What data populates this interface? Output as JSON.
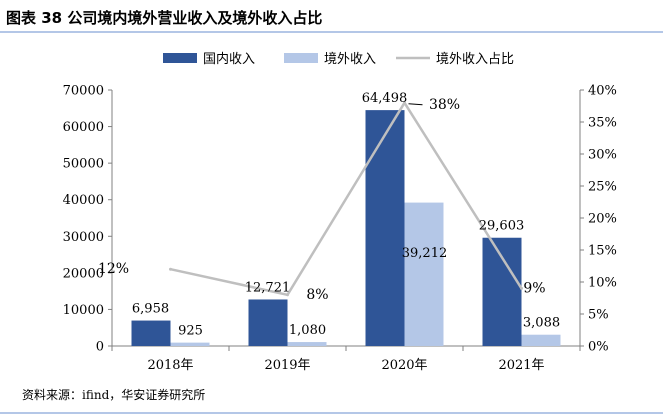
{
  "figure": {
    "title": "图表 38 公司境内境外营业收入及境外收入占比",
    "source": "资料来源：ifind，华安证券研究所"
  },
  "colors": {
    "domestic": "#2f5597",
    "overseas": "#b4c7e7",
    "ratio_line": "#bfbfbf",
    "rule": "#b4c7e7"
  },
  "chart_data": {
    "type": "bar",
    "categories": [
      "2018年",
      "2019年",
      "2020年",
      "2021年"
    ],
    "series": [
      {
        "name": "国内收入",
        "kind": "bar",
        "axis": "left",
        "values": [
          6958,
          12721,
          64498,
          29603
        ],
        "labels": [
          "6,958",
          "12,721",
          "64,498",
          "29,603"
        ]
      },
      {
        "name": "境外收入",
        "kind": "bar",
        "axis": "left",
        "values": [
          925,
          1080,
          39212,
          3088
        ],
        "labels": [
          "925",
          "1,080",
          "39,212",
          "3,088"
        ]
      },
      {
        "name": "境外收入占比",
        "kind": "line",
        "axis": "right",
        "values": [
          12,
          8,
          38,
          9
        ],
        "labels": [
          "12%",
          "8%",
          "38%",
          "9%"
        ]
      }
    ],
    "left_axis": {
      "min": 0,
      "max": 70000,
      "step": 10000,
      "ticks": [
        "0",
        "10000",
        "20000",
        "30000",
        "40000",
        "50000",
        "60000",
        "70000"
      ]
    },
    "right_axis": {
      "min": 0,
      "max": 40,
      "step": 5,
      "ticks": [
        "0%",
        "5%",
        "10%",
        "15%",
        "20%",
        "25%",
        "30%",
        "35%",
        "40%"
      ]
    },
    "legend_position": "top",
    "grid": false
  }
}
